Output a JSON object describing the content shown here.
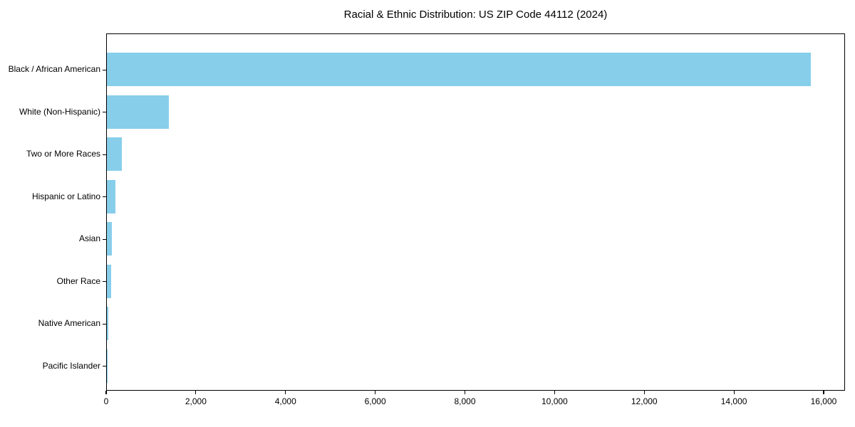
{
  "chart_data": {
    "type": "bar",
    "orientation": "horizontal",
    "title": "Racial & Ethnic Distribution: US ZIP Code 44112 (2024)",
    "categories": [
      "Black / African American",
      "White (Non-Hispanic)",
      "Two or More Races",
      "Hispanic or Latino",
      "Asian",
      "Other Race",
      "Native American",
      "Pacific Islander"
    ],
    "values": [
      15700,
      1380,
      335,
      190,
      115,
      100,
      25,
      10
    ],
    "xlabel": "",
    "ylabel": "",
    "xlim": [
      0,
      16477
    ],
    "xticks": {
      "values": [
        0,
        2000,
        4000,
        6000,
        8000,
        10000,
        12000,
        14000,
        16000
      ],
      "labels": [
        "0",
        "2,000",
        "4,000",
        "6,000",
        "8,000",
        "10,000",
        "12,000",
        "14,000",
        "16,000"
      ]
    },
    "grid": false,
    "legend_position": "none",
    "bar_color": "#87CEEB",
    "text_color": "#000000",
    "background_color": "#ffffff"
  }
}
